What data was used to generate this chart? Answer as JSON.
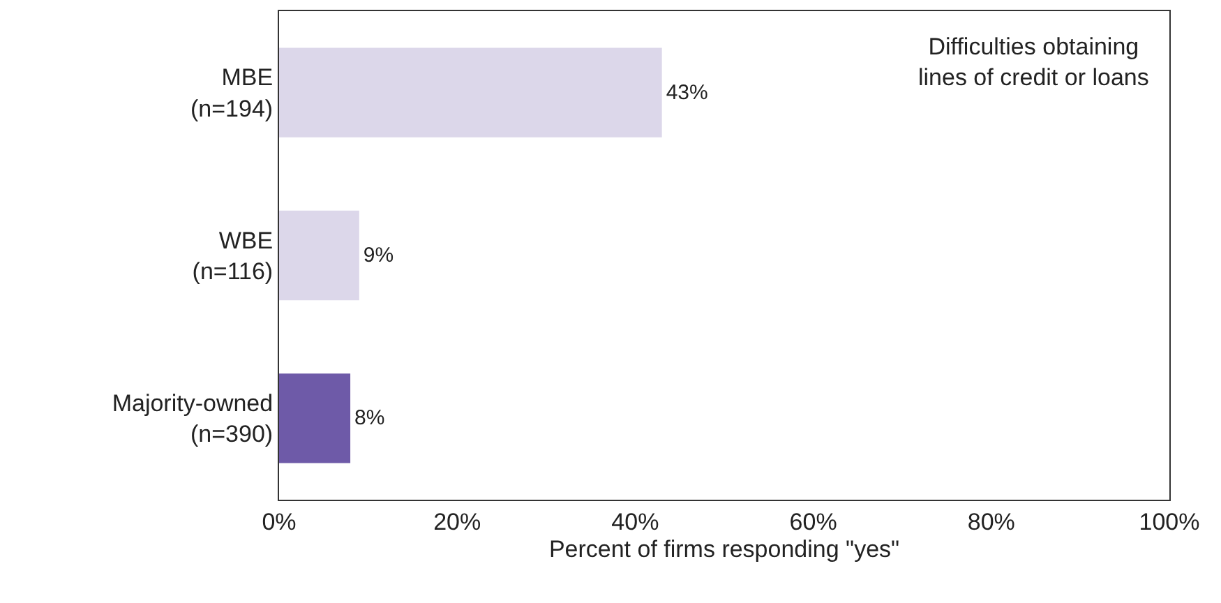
{
  "chart_data": {
    "type": "bar",
    "orientation": "horizontal",
    "xlabel": "Percent of firms responding \"yes\"",
    "categories": [
      "MBE\n(n=194)",
      "WBE\n(n=116)",
      "Majority-owned\n(n=390)"
    ],
    "values": [
      43,
      9,
      8
    ],
    "colors": [
      "#dcd7ea",
      "#dcd7ea",
      "#6e5aa8"
    ],
    "value_labels": [
      "43%",
      "9%",
      "8%"
    ],
    "xlim": [
      0,
      100
    ],
    "xticks": [
      {
        "value": 0,
        "label": "0%"
      },
      {
        "value": 20,
        "label": "20%"
      },
      {
        "value": 40,
        "label": "40%"
      },
      {
        "value": 60,
        "label": "60%"
      },
      {
        "value": 80,
        "label": "80%"
      },
      {
        "value": 100,
        "label": "100%"
      }
    ],
    "annotations": [
      "Difficulties obtaining\nlines of credit or loans"
    ],
    "grid": false,
    "legend": false
  }
}
